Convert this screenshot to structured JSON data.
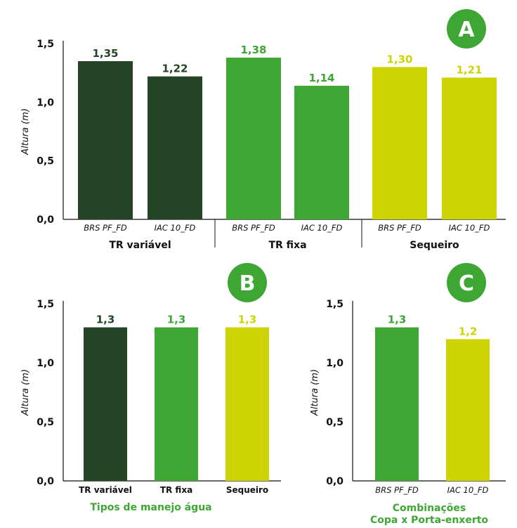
{
  "colors": {
    "dark_green": "#234425",
    "green": "#3ea734",
    "yellow_green": "#cdd401",
    "badge": "#3ea734"
  },
  "chart_data": [
    {
      "panel": "A",
      "type": "bar",
      "ylabel": "Altura (m)",
      "ylim": [
        0,
        1.5
      ],
      "yticks": [
        "0,0",
        "0,5",
        "1,0",
        "1,5"
      ],
      "groups": [
        "TR variável",
        "TR fixa",
        "Sequeiro"
      ],
      "categories": [
        "BRS PF_FD",
        "IAC 10_FD",
        "BRS PF_FD",
        "IAC 10_FD",
        "BRS PF_FD",
        "IAC 10_FD"
      ],
      "values": [
        1.35,
        1.22,
        1.38,
        1.14,
        1.3,
        1.21
      ],
      "labels": [
        "1,35",
        "1,22",
        "1,38",
        "1,14",
        "1,30",
        "1,21"
      ],
      "bar_colors": [
        "#234425",
        "#234425",
        "#3ea734",
        "#3ea734",
        "#cdd401",
        "#cdd401"
      ]
    },
    {
      "panel": "B",
      "type": "bar",
      "ylabel": "Altura (m)",
      "xlabel": "Tipos de manejo água",
      "ylim": [
        0,
        1.5
      ],
      "yticks": [
        "0,0",
        "0,5",
        "1,0",
        "1,5"
      ],
      "categories": [
        "TR variável",
        "TR fixa",
        "Sequeiro"
      ],
      "values": [
        1.3,
        1.3,
        1.3
      ],
      "labels": [
        "1,3",
        "1,3",
        "1,3"
      ],
      "bar_colors": [
        "#234425",
        "#3ea734",
        "#cdd401"
      ]
    },
    {
      "panel": "C",
      "type": "bar",
      "ylabel": "Altura (m)",
      "xlabel_lines": [
        "Combinações",
        "Copa x Porta-enxerto"
      ],
      "ylim": [
        0,
        1.5
      ],
      "yticks": [
        "0,0",
        "0,5",
        "1,0",
        "1,5"
      ],
      "categories": [
        "BRS PF_FD",
        "IAC 10_FD"
      ],
      "values": [
        1.3,
        1.2
      ],
      "labels": [
        "1,3",
        "1,2"
      ],
      "bar_colors": [
        "#3ea734",
        "#cdd401"
      ]
    }
  ]
}
